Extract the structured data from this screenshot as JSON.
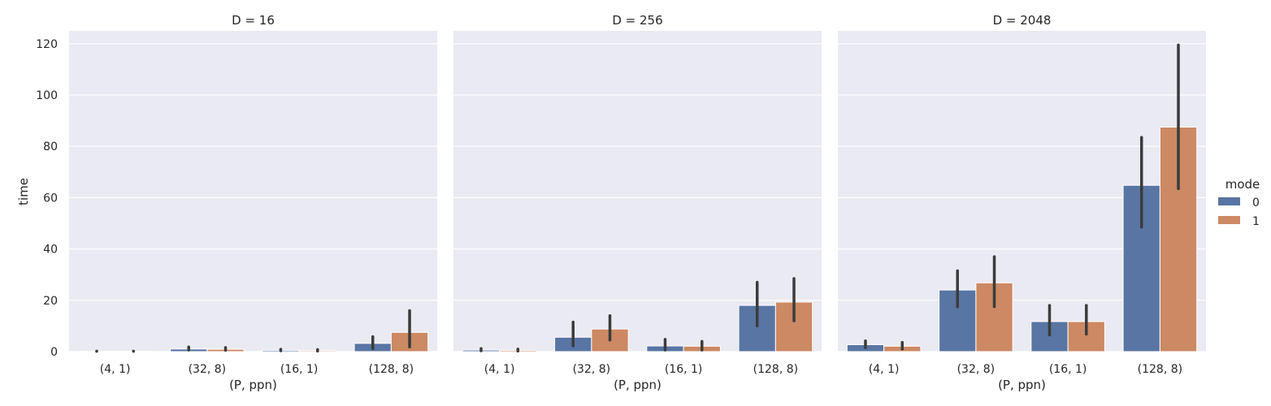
{
  "colors": {
    "panel_bg": "#eaeaf2",
    "grid": "#ffffff",
    "mode_0": "#5975a4",
    "mode_1": "#cc8963",
    "error_bar": "#3b3b3b"
  },
  "chart_data": {
    "type": "bar",
    "facet_var": "D",
    "categories": [
      "(4, 1)",
      "(32, 8)",
      "(16, 1)",
      "(128, 8)"
    ],
    "xlabel": "(P, ppn)",
    "ylabel": "time",
    "ylim": [
      0,
      125
    ],
    "yticks": [
      0,
      20,
      40,
      60,
      80,
      100,
      120
    ],
    "legend": {
      "title": "mode",
      "position": "right",
      "entries": [
        "0",
        "1"
      ]
    },
    "grid": true,
    "panels": [
      {
        "title": "D = 16",
        "series": [
          {
            "name": "0",
            "values": [
              0.15,
              1.0,
              0.5,
              3.2
            ],
            "err_low": [
              0.1,
              0.6,
              0.3,
              1.2
            ],
            "err_high": [
              0.2,
              1.8,
              0.9,
              5.8
            ]
          },
          {
            "name": "1",
            "values": [
              0.15,
              0.9,
              0.4,
              7.5
            ],
            "err_low": [
              0.1,
              0.5,
              0.2,
              1.8
            ],
            "err_high": [
              0.2,
              1.6,
              0.8,
              16.0
            ]
          }
        ]
      },
      {
        "title": "D = 256",
        "series": [
          {
            "name": "0",
            "values": [
              0.6,
              5.6,
              2.2,
              18.0
            ],
            "err_low": [
              0.3,
              2.2,
              0.6,
              10.0
            ],
            "err_high": [
              1.2,
              11.5,
              4.8,
              27.0
            ]
          },
          {
            "name": "1",
            "values": [
              0.5,
              8.8,
              2.1,
              19.3
            ],
            "err_low": [
              0.2,
              4.5,
              0.6,
              12.0
            ],
            "err_high": [
              1.0,
              14.0,
              4.0,
              28.5
            ]
          }
        ]
      },
      {
        "title": "D = 2048",
        "series": [
          {
            "name": "0",
            "values": [
              2.7,
              24.0,
              11.7,
              64.8
            ],
            "err_low": [
              1.5,
              17.5,
              6.5,
              48.5
            ],
            "err_high": [
              4.2,
              31.5,
              18.0,
              83.5
            ]
          },
          {
            "name": "1",
            "values": [
              2.1,
              26.8,
              11.7,
              87.5
            ],
            "err_low": [
              1.0,
              17.5,
              6.8,
              63.5
            ],
            "err_high": [
              3.6,
              37.0,
              18.0,
              119.5
            ]
          }
        ]
      }
    ]
  }
}
